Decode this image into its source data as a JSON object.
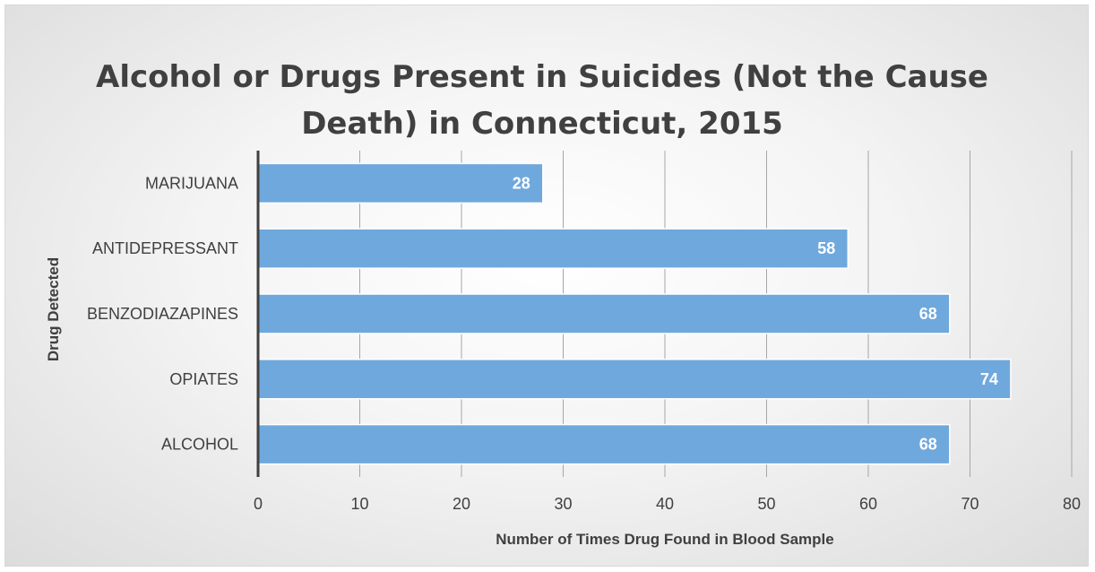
{
  "chart_data": {
    "type": "bar",
    "orientation": "horizontal",
    "title": "Alcohol or Drugs Present in Suicides (Not the Cause Death) in Connecticut, 2015",
    "xlabel": "Number of Times Drug Found in Blood Sample",
    "ylabel": "Drug Detected",
    "categories": [
      "MARIJUANA",
      "ANTIDEPRESSANT",
      "BENZODIAZAPINES",
      "OPIATES",
      "ALCOHOL"
    ],
    "values": [
      28,
      58,
      68,
      74,
      68
    ],
    "xlim": [
      0,
      80
    ],
    "xticks": [
      "0",
      "10",
      "20",
      "30",
      "40",
      "50",
      "60",
      "70",
      "80"
    ],
    "grid": "vertical",
    "data_labels": true,
    "bar_color": "#6fa8dc",
    "axis_color": "#404040"
  }
}
